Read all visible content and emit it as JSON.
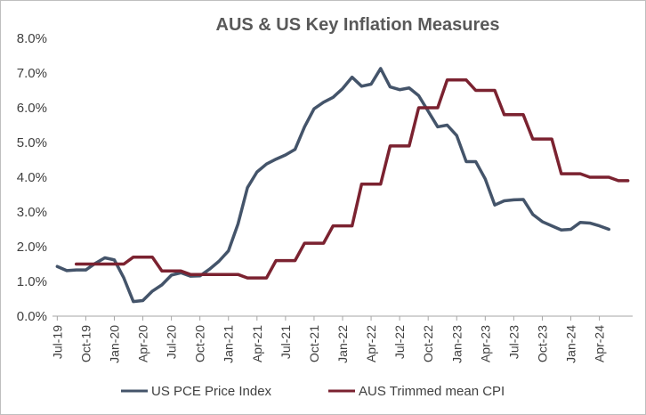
{
  "chart_data": {
    "type": "line",
    "title": "AUS & US Key Inflation Measures",
    "xlabel": "",
    "ylabel": "",
    "ylim": [
      0,
      8
    ],
    "yticks": [
      "0.0%",
      "1.0%",
      "2.0%",
      "3.0%",
      "4.0%",
      "5.0%",
      "6.0%",
      "7.0%",
      "8.0%"
    ],
    "x_tick_labels": [
      "Jul-19",
      "Oct-19",
      "Jan-20",
      "Apr-20",
      "Jul-20",
      "Oct-20",
      "Jan-21",
      "Apr-21",
      "Jul-21",
      "Oct-21",
      "Jan-22",
      "Apr-22",
      "Jul-22",
      "Oct-22",
      "Jan-23",
      "Apr-23",
      "Jul-23",
      "Oct-23",
      "Jan-24",
      "Apr-24"
    ],
    "x_range": [
      "Jul-19",
      "Jul-24"
    ],
    "grid": false,
    "legend": "bottom",
    "series": [
      {
        "name": "US PCE Price Index",
        "color": "#44546a",
        "values": [
          1.43,
          1.31,
          1.33,
          1.33,
          1.52,
          1.68,
          1.62,
          1.1,
          0.42,
          0.45,
          0.72,
          0.9,
          1.18,
          1.25,
          1.15,
          1.16,
          1.35,
          1.58,
          1.88,
          2.65,
          3.7,
          4.15,
          4.38,
          4.52,
          4.64,
          4.8,
          5.45,
          5.97,
          6.16,
          6.3,
          6.55,
          6.88,
          6.62,
          6.68,
          7.13,
          6.6,
          6.52,
          6.57,
          6.35,
          5.9,
          5.45,
          5.5,
          5.2,
          4.45,
          4.45,
          3.95,
          3.2,
          3.32,
          3.35,
          3.36,
          2.93,
          2.72,
          2.6,
          2.48,
          2.5,
          2.7,
          2.68,
          2.6,
          2.5
        ],
        "x_start": "Jul-19",
        "x_end": "May-24"
      },
      {
        "name": "AUS Trimmed mean CPI",
        "color": "#7b2230",
        "values": [
          1.5,
          1.5,
          1.7,
          1.3,
          1.2,
          1.2,
          1.1,
          1.6,
          2.1,
          2.6,
          3.8,
          4.9,
          6.0,
          6.8,
          6.5,
          5.8,
          5.1,
          4.1,
          4.0,
          3.9
        ],
        "x_start": "Sep-19",
        "x_end": "Jun-24",
        "frequency": "quarterly"
      }
    ]
  }
}
